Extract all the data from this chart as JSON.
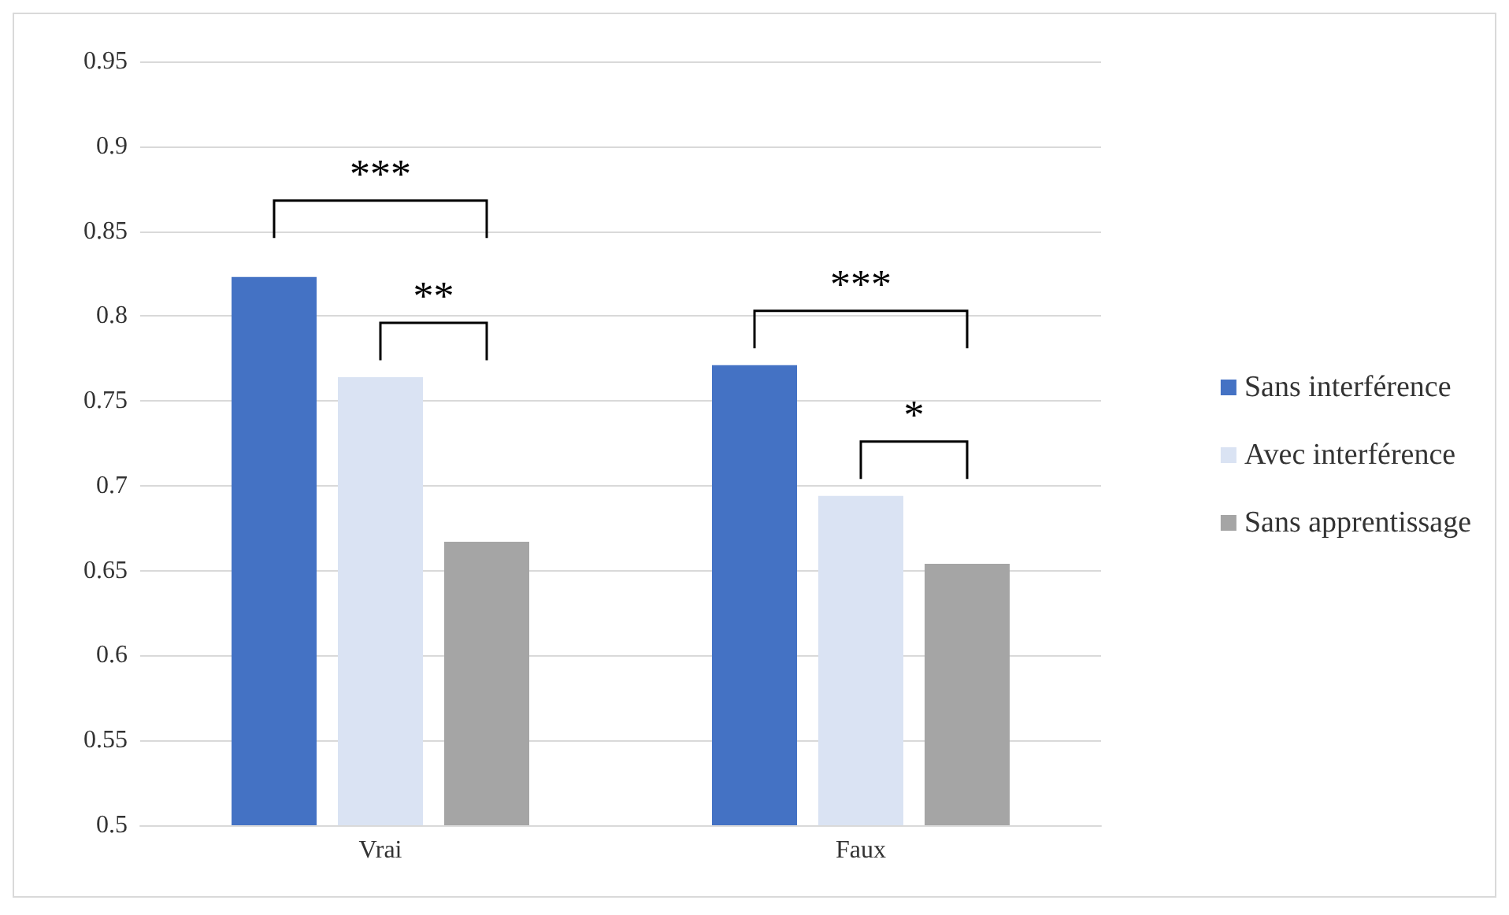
{
  "chart_data": {
    "type": "bar",
    "categories": [
      "Vrai",
      "Faux"
    ],
    "series": [
      {
        "name": "Sans interférence",
        "color": "#4472c4",
        "values": [
          0.823,
          0.771
        ]
      },
      {
        "name": "Avec interférence",
        "color": "#dae3f3",
        "values": [
          0.764,
          0.694
        ]
      },
      {
        "name": "Sans apprentissage",
        "color": "#a5a5a5",
        "values": [
          0.667,
          0.654
        ]
      }
    ],
    "ylim": [
      0.5,
      0.95
    ],
    "yticks": [
      0.5,
      0.55,
      0.6,
      0.65,
      0.7,
      0.75,
      0.8,
      0.85,
      0.9,
      0.95
    ],
    "grid": "y",
    "legend": "right",
    "annotations": [
      "***",
      "**",
      "***",
      "*"
    ]
  }
}
